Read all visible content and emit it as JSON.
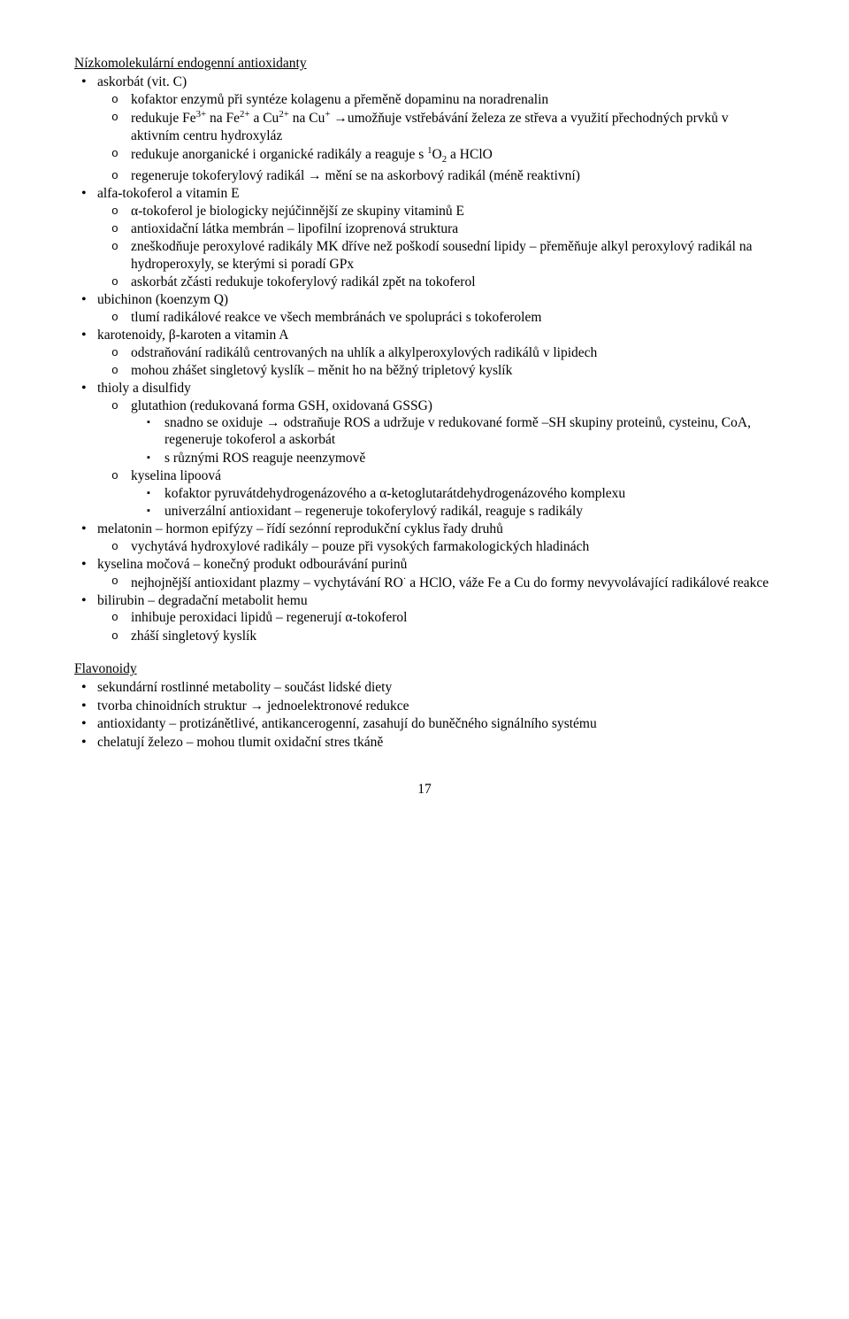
{
  "page_number": "17",
  "sections": [
    {
      "title": "Nízkomolekulární endogenní antioxidanty",
      "items": [
        {
          "text": "askorbát (vit. C)",
          "sub": [
            {
              "html": "kofaktor enzymů při syntéze kolagenu a přeměně dopaminu na noradrenalin"
            },
            {
              "html": "redukuje Fe<sup>3+</sup> na Fe<sup>2+</sup> a Cu<sup>2+</sup> na Cu<sup>+</sup> →umožňuje vstřebávání železa ze střeva a využití přechodných prvků v aktivním centru hydroxyláz"
            },
            {
              "html": "redukuje anorganické i organické radikály a reaguje s <sup>1</sup>O<sub>2</sub> a HClO"
            },
            {
              "html": "regeneruje tokoferylový radikál → mění se na askorbový radikál (méně reaktivní)"
            }
          ]
        },
        {
          "text": "alfa-tokoferol a vitamin E",
          "sub": [
            {
              "html": "α-tokoferol je biologicky nejúčinnější ze skupiny vitaminů E"
            },
            {
              "html": "antioxidační látka membrán – lipofilní izoprenová struktura"
            },
            {
              "html": "zneškodňuje peroxylové radikály MK dříve než poškodí sousední lipidy – přeměňuje alkyl peroxylový radikál na hydroperoxyly, se kterými si poradí GPx"
            },
            {
              "html": "askorbát zčásti redukuje tokoferylový radikál zpět na tokoferol"
            }
          ]
        },
        {
          "text": "ubichinon (koenzym Q)",
          "sub": [
            {
              "html": "tlumí radikálové reakce ve všech membránách ve spolupráci s tokoferolem"
            }
          ]
        },
        {
          "text": "karotenoidy, β-karoten a vitamin A",
          "sub": [
            {
              "html": "odstraňování radikálů centrovaných na uhlík a alkylperoxylových radikálů v lipidech"
            },
            {
              "html": "mohou zhášet singletový kyslík – měnit ho na běžný tripletový kyslík"
            }
          ]
        },
        {
          "text": "thioly a disulfidy",
          "sub": [
            {
              "html": "glutathion (redukovaná forma GSH, oxidovaná GSSG)",
              "sub3": [
                {
                  "html": "snadno se oxiduje → odstraňuje ROS a udržuje v redukované formě –SH skupiny proteinů, cysteinu, CoA, regeneruje tokoferol a askorbát"
                },
                {
                  "html": "s různými ROS reaguje neenzymově"
                }
              ]
            },
            {
              "html": "kyselina lipoová",
              "sub3": [
                {
                  "html": "kofaktor pyruvátdehydrogenázového a α-ketoglutarátdehydrogenázového komplexu"
                },
                {
                  "html": "univerzální antioxidant – regeneruje tokoferylový radikál, reaguje s radikály"
                }
              ]
            }
          ]
        },
        {
          "text": "melatonin – hormon epifýzy – řídí sezónní reprodukční cyklus řady druhů",
          "sub": [
            {
              "html": "vychytává hydroxylové radikály – pouze při vysokých farmakologických hladinách"
            }
          ]
        },
        {
          "text": "kyselina močová – konečný produkt odbourávání purinů",
          "sub": [
            {
              "html": "nejhojnější antioxidant plazmy – vychytávání RO<sup>·</sup> a HClO, váže Fe a Cu do formy nevyvolávající radikálové reakce"
            }
          ]
        },
        {
          "text": "bilirubin – degradační metabolit hemu",
          "sub": [
            {
              "html": "inhibuje peroxidaci lipidů – regenerují α-tokoferol"
            },
            {
              "html": "zháší singletový kyslík"
            }
          ]
        }
      ]
    },
    {
      "title": "Flavonoidy",
      "items": [
        {
          "text": "sekundární rostlinné metabolity – součást lidské diety"
        },
        {
          "text": "tvorba chinoidních struktur → jednoelektronové redukce"
        },
        {
          "text": "antioxidanty – protizánětlivé, antikancerogenní, zasahují do buněčného signálního systému"
        },
        {
          "text": "chelatují železo – mohou tlumit oxidační stres tkáně"
        }
      ]
    }
  ]
}
